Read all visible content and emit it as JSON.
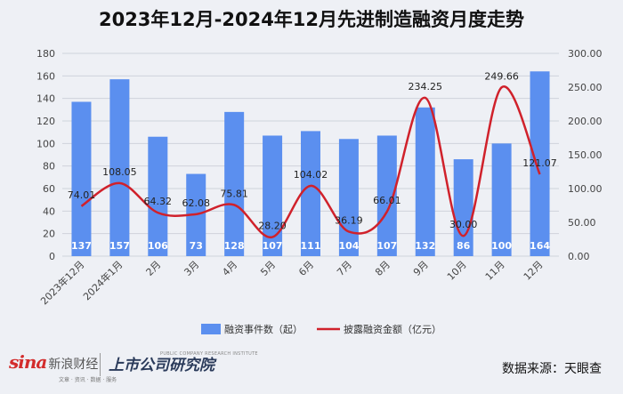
{
  "title": "2023年12月-2024年12月先进制造融资月度走势",
  "footer": {
    "sina_logo": "sina",
    "sina_cn": "新浪财经",
    "sina_tags": "文章 · 资讯 · 数据 · 服务",
    "institute_name": "上市公司研究院",
    "institute_en": "PUBLIC COMPANY RESEARCH INSTITUTE",
    "source": "数据来源：天眼查"
  },
  "colors": {
    "bar": "#5b8fef",
    "line": "#d0212b",
    "background": "#eef0f5",
    "grid": "#cfd3da"
  },
  "chart_data": {
    "type": "bar",
    "title": "2023年12月-2024年12月先进制造融资月度走势",
    "categories": [
      "2023年12月",
      "2024年1月",
      "2月",
      "3月",
      "4月",
      "5月",
      "6月",
      "7月",
      "8月",
      "9月",
      "10月",
      "11月",
      "12月"
    ],
    "series": [
      {
        "name": "融资事件数（起）",
        "type": "bar",
        "axis": "left",
        "values": [
          137,
          157,
          106,
          73,
          128,
          107,
          111,
          104,
          107,
          132,
          86,
          100,
          164
        ]
      },
      {
        "name": "披露融资金额（亿元）",
        "type": "line",
        "axis": "right",
        "values": [
          74.01,
          108.05,
          64.32,
          62.08,
          75.81,
          28.2,
          104.02,
          36.19,
          66.01,
          234.25,
          30.0,
          249.66,
          121.07
        ],
        "labels": [
          "74.01",
          "108.05",
          "64.32",
          "62.08",
          "75.81",
          "28.20",
          "104.02",
          "36.19",
          "66.01",
          "234.25",
          "30.00",
          "249.66",
          "121.07"
        ]
      }
    ],
    "y_left": {
      "min": 0,
      "max": 180,
      "ticks": [
        "0",
        "20",
        "40",
        "60",
        "80",
        "100",
        "120",
        "140",
        "160",
        "180"
      ]
    },
    "y_right": {
      "min": 0,
      "max": 300,
      "ticks": [
        "0.00",
        "50.00",
        "100.00",
        "150.00",
        "200.00",
        "250.00",
        "300.00"
      ]
    },
    "grid": true,
    "legend_position": "bottom"
  }
}
